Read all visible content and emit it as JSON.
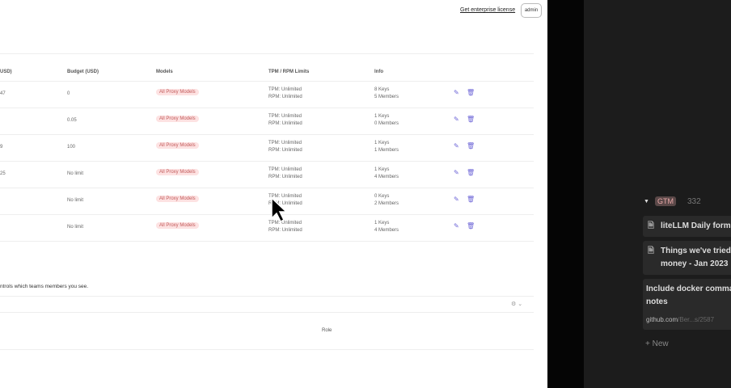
{
  "header": {
    "enterprise_link": "Get enterprise license",
    "user_button": "admin"
  },
  "table": {
    "columns": [
      "USD)",
      "Budget (USD)",
      "Models",
      "TPM / RPM Limits",
      "Info"
    ],
    "rows": [
      {
        "spend": "47",
        "budget": "0",
        "model": "All Proxy Models",
        "tpm": "TPM: Unlimited",
        "rpm": "RPM: Unlimited",
        "keys": "8 Keys",
        "members": "5 Members"
      },
      {
        "spend": "",
        "budget": "0.05",
        "model": "All Proxy Models",
        "tpm": "TPM: Unlimited",
        "rpm": "RPM: Unlimited",
        "keys": "1 Keys",
        "members": "0 Members"
      },
      {
        "spend": "9",
        "budget": "100",
        "model": "All Proxy Models",
        "tpm": "TPM: Unlimited",
        "rpm": "RPM: Unlimited",
        "keys": "1 Keys",
        "members": "1 Members"
      },
      {
        "spend": "25",
        "budget": "No limit",
        "model": "All Proxy Models",
        "tpm": "TPM: Unlimited",
        "rpm": "RPM: Unlimited",
        "keys": "1 Keys",
        "members": "4 Members"
      },
      {
        "spend": "",
        "budget": "No limit",
        "model": "All Proxy Models",
        "tpm": "TPM: Unlimited",
        "rpm": "RPM: Unlimited",
        "keys": "0 Keys",
        "members": "2 Members"
      },
      {
        "spend": "",
        "budget": "No limit",
        "model": "All Proxy Models",
        "tpm": "TPM: Unlimited",
        "rpm": "RPM: Unlimited",
        "keys": "1 Keys",
        "members": "4 Members"
      }
    ]
  },
  "members": {
    "description": "ntrols which teams members you see.",
    "role_header": "Role"
  },
  "notion": {
    "group": "GTM",
    "count": "332",
    "cards": [
      {
        "title": "liteLLM Daily forma"
      },
      {
        "title": "Things we've tried",
        "title2": "money - Jan 2023"
      },
      {
        "title": "Include docker comma",
        "title2": "notes",
        "link_domain": "github.com",
        "link_path": "/Ber...s/2587"
      }
    ],
    "new_label": "New"
  },
  "colors": {
    "accent": "#6b63d6",
    "badge_bg": "#fde2e2",
    "dark_panel": "#1c1c1c"
  }
}
